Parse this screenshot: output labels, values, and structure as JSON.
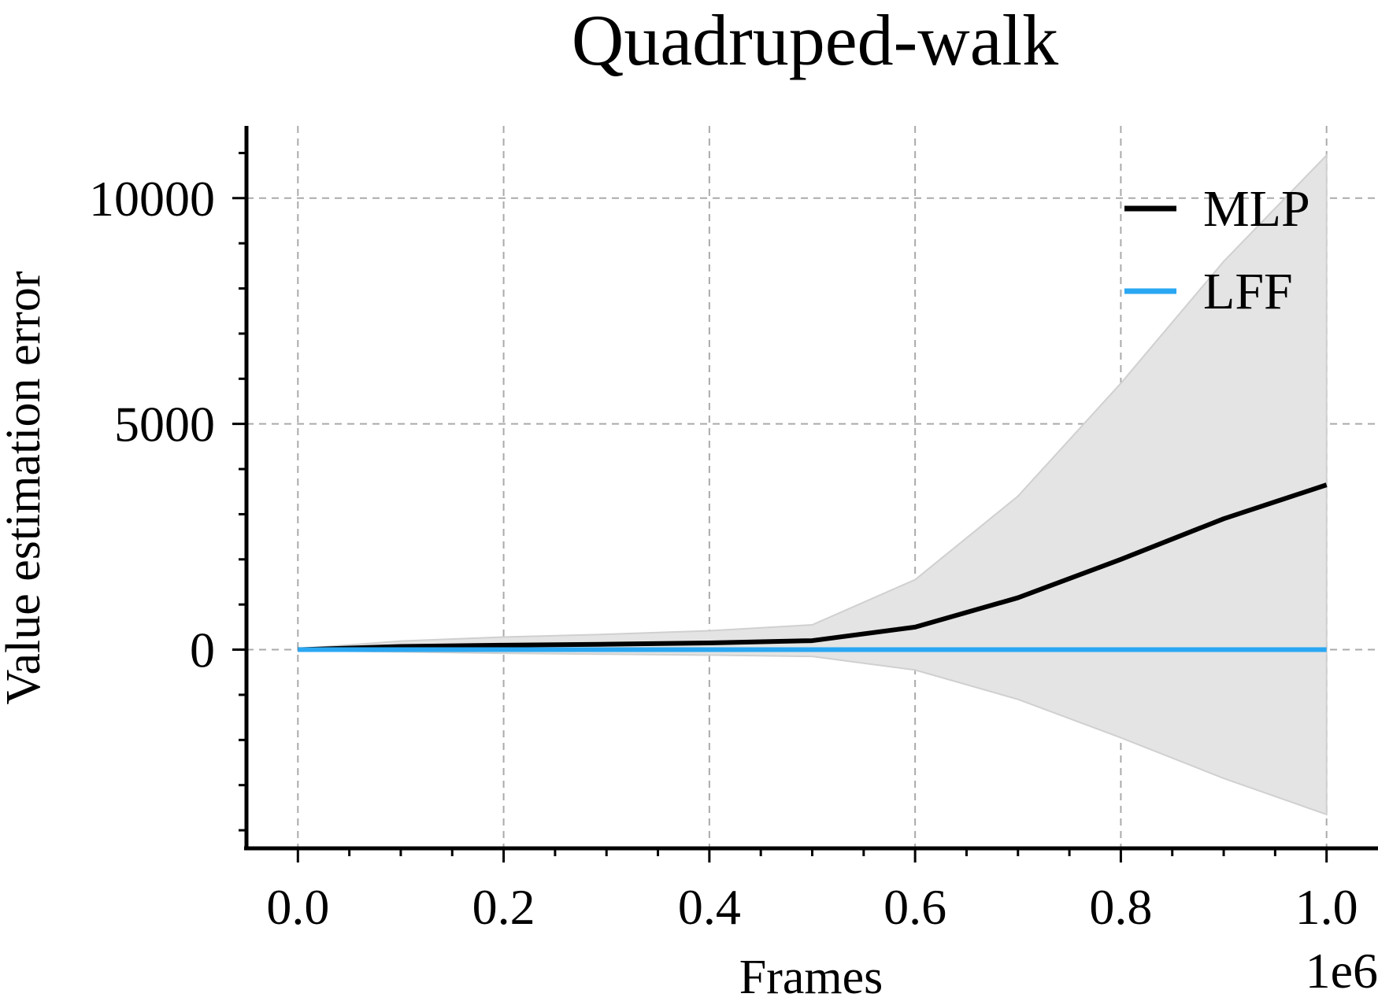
{
  "chart_data": {
    "type": "line",
    "title": "Quadruped-walk",
    "xlabel": "Frames",
    "ylabel": "Value estimation error",
    "x_offset_label": "1e6",
    "xlim": [
      -0.05,
      1.05
    ],
    "ylim": [
      -4400,
      11600
    ],
    "x_ticks": [
      0.0,
      0.2,
      0.4,
      0.6,
      0.8,
      1.0
    ],
    "x_tick_labels": [
      "0.0",
      "0.2",
      "0.4",
      "0.6",
      "0.8",
      "1.0"
    ],
    "x_minor_ticks": [
      0.05,
      0.1,
      0.15,
      0.25,
      0.3,
      0.35,
      0.45,
      0.5,
      0.55,
      0.65,
      0.7,
      0.75,
      0.85,
      0.9,
      0.95,
      1.05
    ],
    "y_ticks": [
      0,
      5000,
      10000
    ],
    "y_tick_labels": [
      "0",
      "5000",
      "10000"
    ],
    "y_minor_ticks": [
      -4000,
      -3000,
      -2000,
      -1000,
      1000,
      2000,
      3000,
      4000,
      6000,
      7000,
      8000,
      9000,
      11000
    ],
    "grid": true,
    "legend_position": "top-right",
    "x": [
      0.0,
      0.1,
      0.2,
      0.3,
      0.4,
      0.5,
      0.6,
      0.7,
      0.8,
      0.9,
      1.0
    ],
    "series": [
      {
        "name": "MLP",
        "color": "#000000",
        "values": [
          0,
          70,
          100,
          120,
          150,
          200,
          500,
          1150,
          2000,
          2900,
          3650
        ],
        "band_lower": [
          -20,
          -50,
          -80,
          -100,
          -120,
          -150,
          -450,
          -1100,
          -1950,
          -2850,
          -3650
        ],
        "band_upper": [
          20,
          190,
          280,
          340,
          420,
          550,
          1550,
          3400,
          5900,
          8600,
          10950
        ]
      },
      {
        "name": "LFF",
        "color": "#2aa7f2",
        "values": [
          0,
          0,
          0,
          0,
          0,
          0,
          0,
          0,
          0,
          0,
          0
        ]
      }
    ],
    "band_color": "#e4e4e4"
  }
}
